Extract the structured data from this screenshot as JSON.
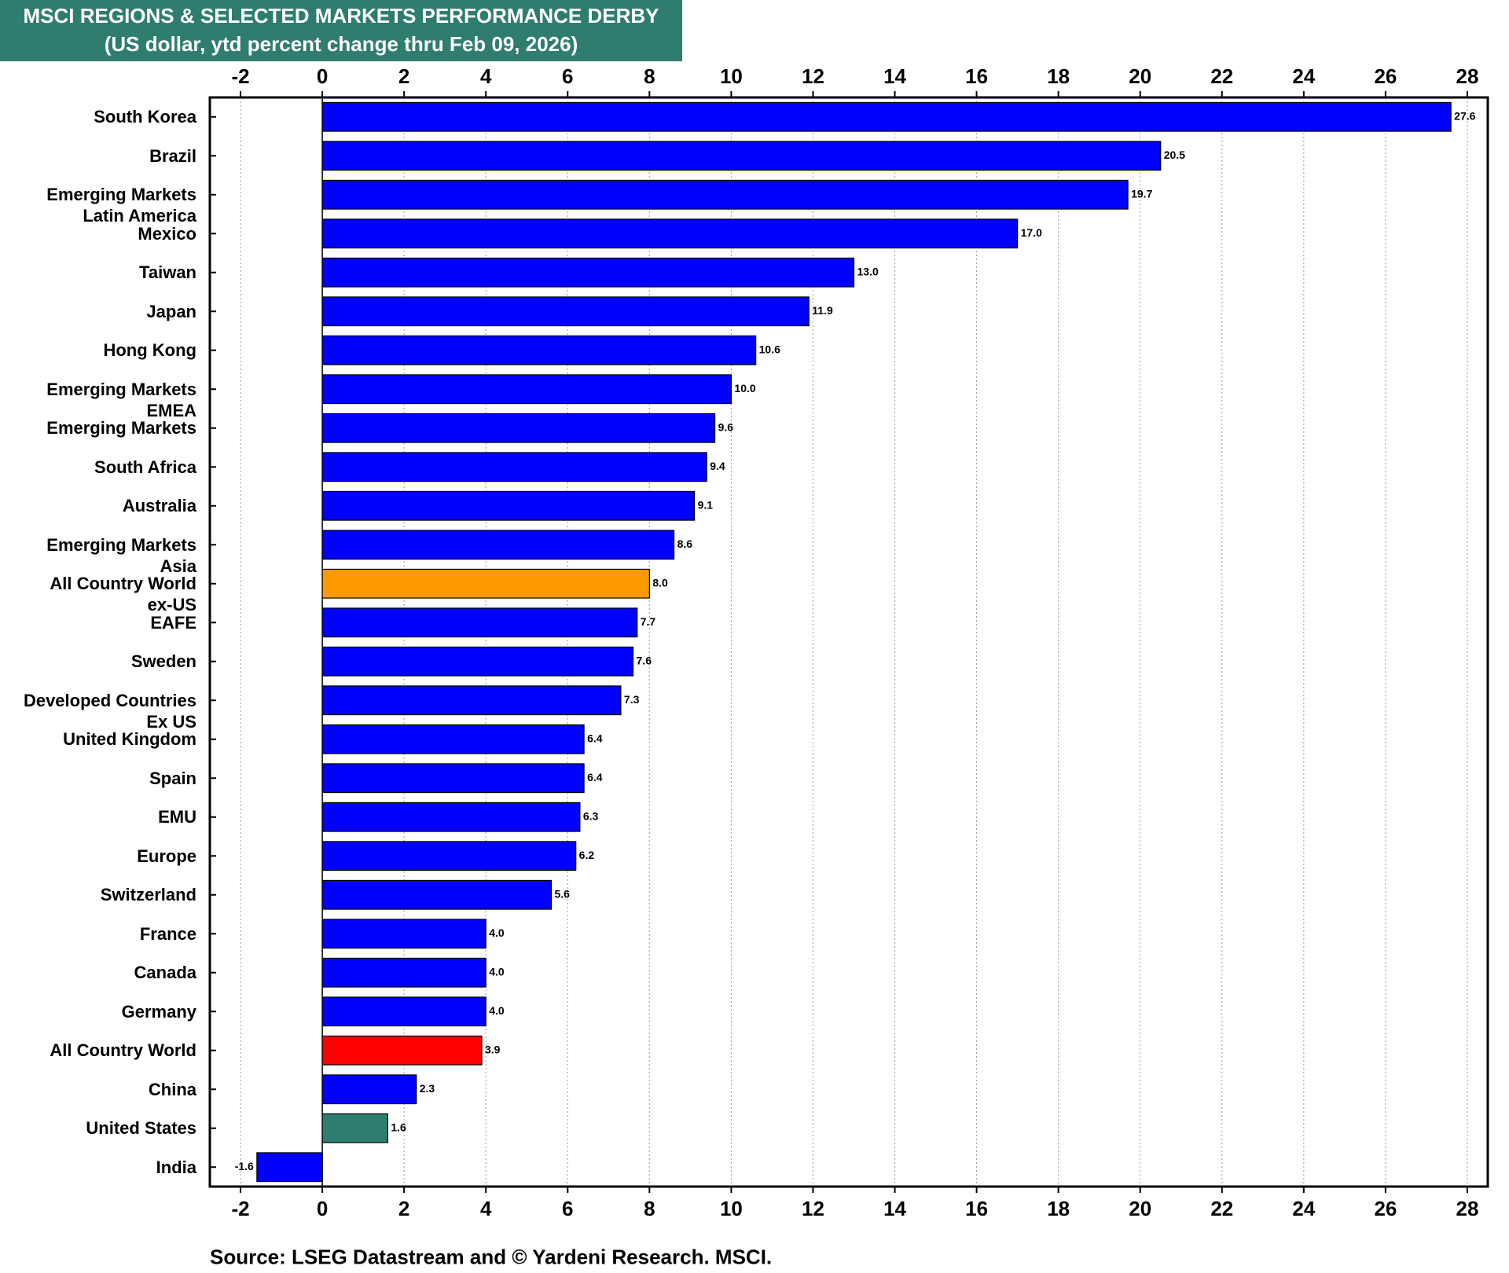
{
  "chart_data": {
    "type": "hbar",
    "title": "MSCI REGIONS & SELECTED MARKETS PERFORMANCE DERBY",
    "subtitle": "(US dollar, ytd percent change thru Feb 09, 2026)",
    "source": "Source: LSEG Datastream and © Yardeni Research. MSCI.",
    "categories": [
      "South Korea",
      "Brazil",
      "Emerging Markets\nLatin America",
      "Mexico",
      "Taiwan",
      "Japan",
      "Hong Kong",
      "Emerging Markets\nEMEA",
      "Emerging Markets",
      "South Africa",
      "Australia",
      "Emerging Markets\nAsia",
      "All Country World\nex-US",
      "EAFE",
      "Sweden",
      "Developed Countries\nEx US",
      "United Kingdom",
      "Spain",
      "EMU",
      "Europe",
      "Switzerland",
      "France",
      "Canada",
      "Germany",
      "All Country World",
      "China",
      "United States",
      "India"
    ],
    "values": [
      27.6,
      20.5,
      19.7,
      17.0,
      13.0,
      11.9,
      10.6,
      10.0,
      9.6,
      9.4,
      9.1,
      8.6,
      8.0,
      7.7,
      7.6,
      7.3,
      6.4,
      6.4,
      6.3,
      6.2,
      5.6,
      4.0,
      4.0,
      4.0,
      3.9,
      2.3,
      1.6,
      -1.6
    ],
    "value_labels": [
      "27.6",
      "20.5",
      "19.7",
      "17.0",
      "13.0",
      "11.9",
      "10.6",
      "10.0",
      "9.6",
      "9.4",
      "9.1",
      "8.6",
      "8.0",
      "7.7",
      "7.6",
      "7.3",
      "6.4",
      "6.4",
      "6.3",
      "6.2",
      "5.6",
      "4.0",
      "4.0",
      "4.0",
      "3.9",
      "2.3",
      "1.6",
      "-1.6"
    ],
    "colors": [
      "#0000ff",
      "#0000ff",
      "#0000ff",
      "#0000ff",
      "#0000ff",
      "#0000ff",
      "#0000ff",
      "#0000ff",
      "#0000ff",
      "#0000ff",
      "#0000ff",
      "#0000ff",
      "#ff9900",
      "#0000ff",
      "#0000ff",
      "#0000ff",
      "#0000ff",
      "#0000ff",
      "#0000ff",
      "#0000ff",
      "#0000ff",
      "#0000ff",
      "#0000ff",
      "#0000ff",
      "#ff0000",
      "#0000ff",
      "#2e7d6e",
      "#0000ff"
    ],
    "xlim": [
      -2.75,
      28.5
    ],
    "xticks": [
      -2,
      0,
      2,
      4,
      6,
      8,
      10,
      12,
      14,
      16,
      18,
      20,
      22,
      24,
      26,
      28
    ],
    "grid": true
  }
}
